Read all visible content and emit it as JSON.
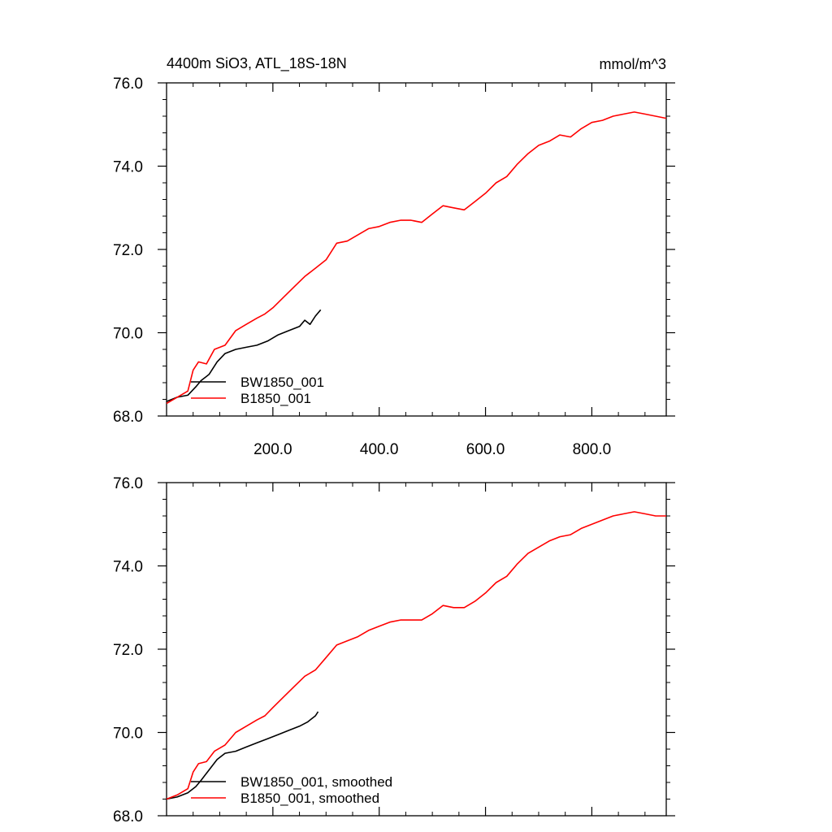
{
  "figure": {
    "title_left": "4400m SiO3, ATL_18S-18N",
    "title_right": "mmol/m^3"
  },
  "chart_data": [
    {
      "type": "line",
      "title": "4400m SiO3, ATL_18S-18N",
      "units": "mmol/m^3",
      "xlim": [
        0,
        940
      ],
      "ylim": [
        68,
        76
      ],
      "x_ticks": [
        200,
        400,
        600,
        800
      ],
      "x_tick_labels": [
        "200.0",
        "400.0",
        "600.0",
        "800.0"
      ],
      "y_ticks": [
        68,
        70,
        72,
        74,
        76
      ],
      "y_tick_labels": [
        "68.0",
        "70.0",
        "72.0",
        "74.0",
        "76.0"
      ],
      "grid": false,
      "legend_position": "bottom-left",
      "series": [
        {
          "name": "BW1850_001",
          "color": "#000000",
          "points": [
            [
              0,
              68.35
            ],
            [
              20,
              68.45
            ],
            [
              40,
              68.5
            ],
            [
              55,
              68.7
            ],
            [
              65,
              68.85
            ],
            [
              80,
              69.0
            ],
            [
              95,
              69.3
            ],
            [
              110,
              69.5
            ],
            [
              130,
              69.6
            ],
            [
              150,
              69.65
            ],
            [
              170,
              69.7
            ],
            [
              190,
              69.8
            ],
            [
              210,
              69.95
            ],
            [
              230,
              70.05
            ],
            [
              250,
              70.15
            ],
            [
              260,
              70.3
            ],
            [
              270,
              70.2
            ],
            [
              280,
              70.4
            ],
            [
              290,
              70.55
            ]
          ]
        },
        {
          "name": "B1850_001",
          "color": "#ff0000",
          "points": [
            [
              0,
              68.3
            ],
            [
              20,
              68.45
            ],
            [
              40,
              68.6
            ],
            [
              50,
              69.1
            ],
            [
              60,
              69.3
            ],
            [
              75,
              69.25
            ],
            [
              90,
              69.6
            ],
            [
              110,
              69.7
            ],
            [
              130,
              70.05
            ],
            [
              150,
              70.2
            ],
            [
              170,
              70.35
            ],
            [
              185,
              70.45
            ],
            [
              200,
              70.6
            ],
            [
              220,
              70.85
            ],
            [
              240,
              71.1
            ],
            [
              260,
              71.35
            ],
            [
              280,
              71.55
            ],
            [
              300,
              71.75
            ],
            [
              320,
              72.15
            ],
            [
              340,
              72.2
            ],
            [
              360,
              72.35
            ],
            [
              380,
              72.5
            ],
            [
              400,
              72.55
            ],
            [
              420,
              72.65
            ],
            [
              440,
              72.7
            ],
            [
              460,
              72.7
            ],
            [
              480,
              72.65
            ],
            [
              500,
              72.85
            ],
            [
              520,
              73.05
            ],
            [
              540,
              73.0
            ],
            [
              560,
              72.95
            ],
            [
              580,
              73.15
            ],
            [
              600,
              73.35
            ],
            [
              620,
              73.6
            ],
            [
              640,
              73.75
            ],
            [
              660,
              74.05
            ],
            [
              680,
              74.3
            ],
            [
              700,
              74.5
            ],
            [
              720,
              74.6
            ],
            [
              740,
              74.75
            ],
            [
              760,
              74.7
            ],
            [
              780,
              74.9
            ],
            [
              800,
              75.05
            ],
            [
              820,
              75.1
            ],
            [
              840,
              75.2
            ],
            [
              860,
              75.25
            ],
            [
              880,
              75.3
            ],
            [
              900,
              75.25
            ],
            [
              920,
              75.2
            ],
            [
              940,
              75.15
            ]
          ]
        }
      ]
    },
    {
      "type": "line",
      "xlim": [
        0,
        940
      ],
      "ylim": [
        68,
        76
      ],
      "x_ticks": [
        200,
        400,
        600,
        800
      ],
      "y_ticks": [
        68,
        70,
        72,
        74,
        76
      ],
      "y_tick_labels": [
        "68.0",
        "70.0",
        "72.0",
        "74.0",
        "76.0"
      ],
      "grid": false,
      "legend_position": "bottom-left",
      "series": [
        {
          "name": "BW1850_001, smoothed",
          "color": "#000000",
          "points": [
            [
              0,
              68.4
            ],
            [
              20,
              68.45
            ],
            [
              40,
              68.55
            ],
            [
              55,
              68.7
            ],
            [
              65,
              68.85
            ],
            [
              80,
              69.1
            ],
            [
              95,
              69.35
            ],
            [
              110,
              69.5
            ],
            [
              130,
              69.55
            ],
            [
              150,
              69.65
            ],
            [
              170,
              69.75
            ],
            [
              190,
              69.85
            ],
            [
              210,
              69.95
            ],
            [
              230,
              70.05
            ],
            [
              250,
              70.15
            ],
            [
              265,
              70.25
            ],
            [
              280,
              70.4
            ],
            [
              285,
              70.5
            ]
          ]
        },
        {
          "name": "B1850_001, smoothed",
          "color": "#ff0000",
          "points": [
            [
              0,
              68.4
            ],
            [
              20,
              68.5
            ],
            [
              40,
              68.65
            ],
            [
              50,
              69.05
            ],
            [
              60,
              69.25
            ],
            [
              75,
              69.3
            ],
            [
              90,
              69.55
            ],
            [
              110,
              69.7
            ],
            [
              130,
              70.0
            ],
            [
              150,
              70.15
            ],
            [
              170,
              70.3
            ],
            [
              185,
              70.4
            ],
            [
              200,
              70.6
            ],
            [
              220,
              70.85
            ],
            [
              240,
              71.1
            ],
            [
              260,
              71.35
            ],
            [
              280,
              71.5
            ],
            [
              300,
              71.8
            ],
            [
              320,
              72.1
            ],
            [
              340,
              72.2
            ],
            [
              360,
              72.3
            ],
            [
              380,
              72.45
            ],
            [
              400,
              72.55
            ],
            [
              420,
              72.65
            ],
            [
              440,
              72.7
            ],
            [
              460,
              72.7
            ],
            [
              480,
              72.7
            ],
            [
              500,
              72.85
            ],
            [
              520,
              73.05
            ],
            [
              540,
              73.0
            ],
            [
              560,
              73.0
            ],
            [
              580,
              73.15
            ],
            [
              600,
              73.35
            ],
            [
              620,
              73.6
            ],
            [
              640,
              73.75
            ],
            [
              660,
              74.05
            ],
            [
              680,
              74.3
            ],
            [
              700,
              74.45
            ],
            [
              720,
              74.6
            ],
            [
              740,
              74.7
            ],
            [
              760,
              74.75
            ],
            [
              780,
              74.9
            ],
            [
              800,
              75.0
            ],
            [
              820,
              75.1
            ],
            [
              840,
              75.2
            ],
            [
              860,
              75.25
            ],
            [
              880,
              75.3
            ],
            [
              900,
              75.25
            ],
            [
              920,
              75.2
            ],
            [
              940,
              75.2
            ]
          ]
        }
      ]
    }
  ]
}
